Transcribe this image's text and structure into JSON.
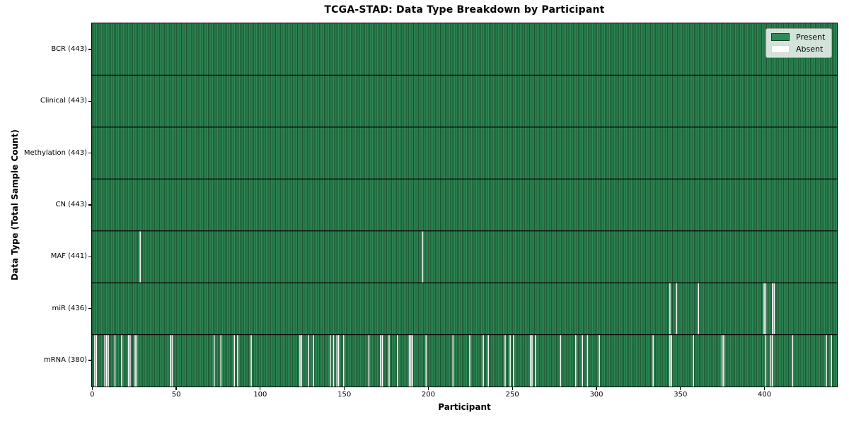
{
  "title": "TCGA-STAD: Data Type Breakdown by Participant",
  "axes": {
    "xlabel": "Participant",
    "ylabel": "Data Type (Total Sample Count)"
  },
  "legend": {
    "items": [
      {
        "label": "Present",
        "color": "#2e8b57"
      },
      {
        "label": "Absent",
        "color": "#ffffff"
      }
    ]
  },
  "colors": {
    "present": "#2e8b57",
    "absent": "#ffffff",
    "cell_edge": "#14381f",
    "row_border": "#0a0a0a",
    "axis": "#000000"
  },
  "chart_data": {
    "type": "heatmap",
    "title": "TCGA-STAD: Data Type Breakdown by Participant",
    "xlabel": "Participant",
    "ylabel": "Data Type (Total Sample Count)",
    "legend": [
      "Present",
      "Absent"
    ],
    "legend_position": "upper right",
    "grid": false,
    "x_range": [
      0,
      443
    ],
    "x_ticks": [
      0,
      50,
      100,
      150,
      200,
      250,
      300,
      350,
      400
    ],
    "n_participants": 443,
    "rows": [
      {
        "label": "BCR (443)",
        "data_type": "BCR",
        "present_count": 443,
        "absent_participants": []
      },
      {
        "label": "Clinical (443)",
        "data_type": "Clinical",
        "present_count": 443,
        "absent_participants": []
      },
      {
        "label": "Methylation (443)",
        "data_type": "Methylation",
        "present_count": 443,
        "absent_participants": []
      },
      {
        "label": "CN (443)",
        "data_type": "CN",
        "present_count": 443,
        "absent_participants": []
      },
      {
        "label": "MAF (441)",
        "data_type": "MAF",
        "present_count": 441,
        "absent_participants": [
          28,
          196
        ]
      },
      {
        "label": "miR (436)",
        "data_type": "miR",
        "present_count": 436,
        "absent_participants": [
          343,
          347,
          360,
          399,
          400,
          404,
          405
        ]
      },
      {
        "label": "mRNA (380)",
        "data_type": "mRNA",
        "present_count": 380,
        "absent_participants": [
          1,
          2,
          7,
          8,
          9,
          13,
          17,
          21,
          22,
          25,
          26,
          46,
          47,
          72,
          76,
          84,
          86,
          94,
          123,
          124,
          128,
          131,
          141,
          143,
          145,
          146,
          149,
          164,
          171,
          172,
          176,
          181,
          188,
          189,
          190,
          198,
          214,
          224,
          232,
          235,
          245,
          248,
          250,
          260,
          261,
          263,
          278,
          287,
          291,
          294,
          301,
          333,
          343,
          344,
          357,
          374,
          375,
          400,
          403,
          404,
          416,
          436,
          439
        ]
      }
    ]
  }
}
